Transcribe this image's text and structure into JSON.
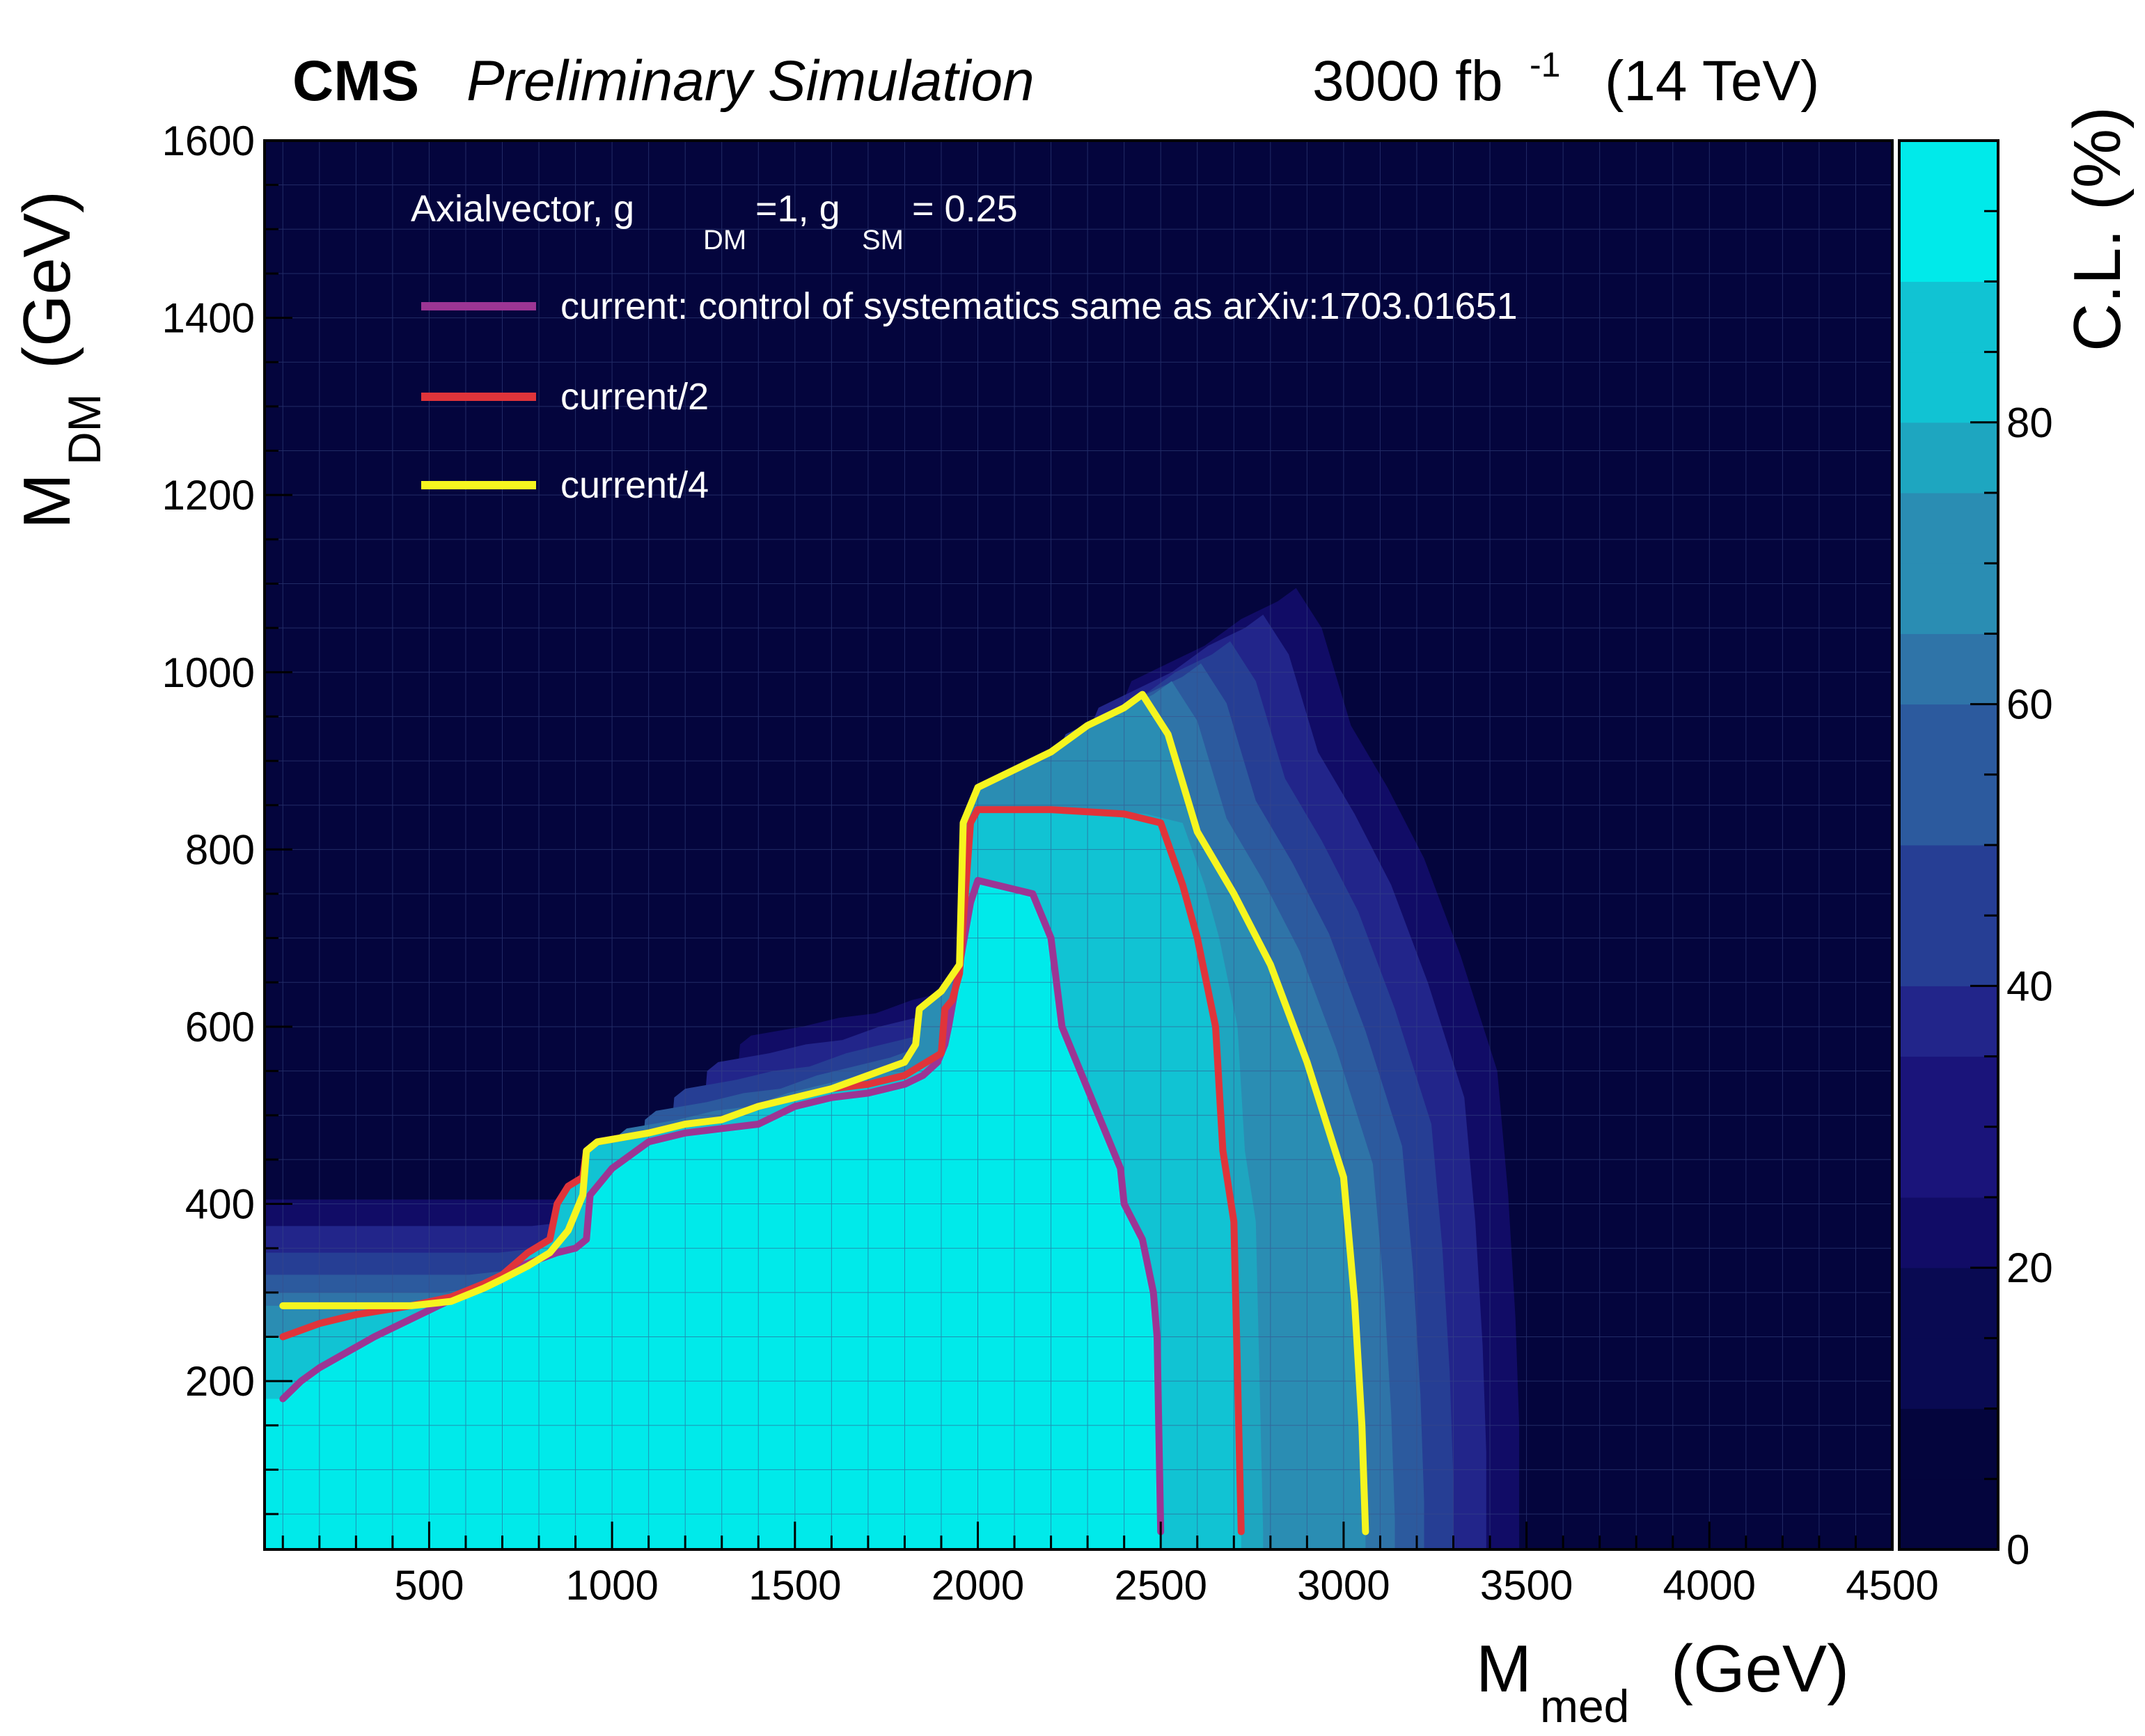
{
  "header": {
    "experiment": "CMS",
    "status": "Preliminary Simulation",
    "lumi_value": "3000 fb",
    "lumi_exp": "-1",
    "energy": "(14 TeV)"
  },
  "axes": {
    "x_title_main": "M",
    "x_title_sub": "med",
    "x_title_unit": "(GeV)",
    "y_title_main": "M",
    "y_title_sub": "DM",
    "y_title_unit": "(GeV)",
    "z_title": "C.L. (%)"
  },
  "legend": {
    "model": "Axialvector, g",
    "model_sub1": "DM",
    "model_mid": "=1, g",
    "model_sub2": "SM",
    "model_end": " = 0.25"
  },
  "colors": {
    "frame": "#000000",
    "grid": "#3a4a88",
    "palette": [
      "#04053d",
      "#090a52",
      "#110c66",
      "#1a147a",
      "#22258a",
      "#263e94",
      "#2c5a9e",
      "#2f74a8",
      "#2a8db3",
      "#1ea6c0",
      "#11c3d3",
      "#00eaea"
    ]
  },
  "chart_data": {
    "type": "heatmap",
    "title": "Axialvector, g_DM=1, g_SM = 0.25",
    "xlabel": "M_med (GeV)",
    "ylabel": "M_DM (GeV)",
    "zlabel": "C.L. (%)",
    "xlim": [
      50,
      4500
    ],
    "ylim": [
      10,
      1600
    ],
    "zlim": [
      0,
      100
    ],
    "x_ticks": [
      500,
      1000,
      1500,
      2000,
      2500,
      3000,
      3500,
      4000,
      4500
    ],
    "y_ticks": [
      200,
      400,
      600,
      800,
      1000,
      1200,
      1400,
      1600
    ],
    "z_ticks": [
      0,
      20,
      40,
      60,
      80
    ],
    "contour_levels": [
      0,
      10,
      20,
      30,
      40,
      50,
      60,
      70,
      80,
      90,
      95
    ],
    "series": [
      {
        "name": "current: control of systematics same as arXiv:1703.01651",
        "color": "#9c3594",
        "x": [
          100,
          150,
          200,
          350,
          450,
          550,
          650,
          750,
          850,
          900,
          930,
          940,
          1000,
          1100,
          1200,
          1300,
          1400,
          1500,
          1600,
          1700,
          1800,
          1850,
          1890,
          1910,
          1920,
          1980,
          2000,
          2150,
          2200,
          2230,
          2300,
          2350,
          2390,
          2400,
          2450,
          2480,
          2490,
          2500
        ],
        "y": [
          180,
          200,
          215,
          250,
          270,
          290,
          310,
          330,
          345,
          350,
          360,
          410,
          440,
          470,
          480,
          485,
          490,
          510,
          520,
          525,
          535,
          545,
          560,
          580,
          600,
          740,
          765,
          750,
          700,
          600,
          530,
          480,
          440,
          400,
          360,
          300,
          250,
          30
        ]
      },
      {
        "name": "current/2",
        "color": "#e0343a",
        "x": [
          100,
          200,
          300,
          450,
          560,
          650,
          700,
          770,
          830,
          850,
          880,
          920,
          930,
          960,
          1100,
          1200,
          1300,
          1400,
          1500,
          1600,
          1700,
          1800,
          1900,
          1910,
          1930,
          1950,
          1980,
          2000,
          2200,
          2400,
          2500,
          2560,
          2600,
          2650,
          2670,
          2700,
          2720
        ],
        "y": [
          250,
          265,
          275,
          285,
          295,
          310,
          320,
          345,
          360,
          400,
          420,
          430,
          460,
          470,
          480,
          490,
          495,
          510,
          520,
          530,
          535,
          545,
          570,
          620,
          630,
          660,
          830,
          845,
          845,
          840,
          830,
          760,
          700,
          600,
          460,
          380,
          30
        ]
      },
      {
        "name": "current/4",
        "color": "#f6f51f",
        "x": [
          100,
          200,
          300,
          450,
          560,
          650,
          700,
          770,
          830,
          880,
          920,
          930,
          960,
          1100,
          1200,
          1300,
          1400,
          1500,
          1600,
          1700,
          1800,
          1830,
          1840,
          1900,
          1950,
          1960,
          2000,
          2100,
          2200,
          2300,
          2400,
          2450,
          2520,
          2600,
          2700,
          2800,
          2900,
          3000,
          3030,
          3050,
          3060
        ],
        "y": [
          285,
          285,
          285,
          285,
          290,
          305,
          315,
          330,
          345,
          370,
          410,
          460,
          470,
          480,
          490,
          495,
          510,
          520,
          530,
          545,
          560,
          580,
          620,
          640,
          670,
          830,
          870,
          890,
          910,
          940,
          960,
          975,
          930,
          820,
          750,
          670,
          560,
          430,
          290,
          150,
          30
        ]
      }
    ]
  }
}
